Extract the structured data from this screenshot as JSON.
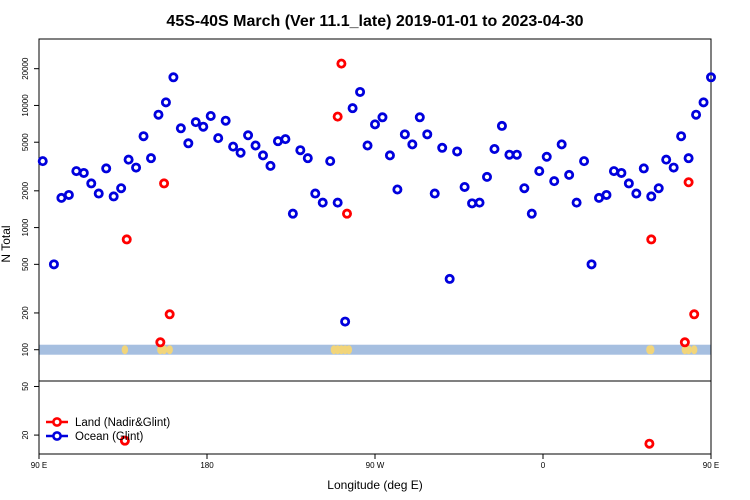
{
  "chart_data": {
    "type": "scatter",
    "title": "45S-40S March (Ver 11.1_late)   2019-01-01 to 2023-04-30",
    "xlabel": "Longitude (deg E)",
    "ylabel": "N Total",
    "x_scale": "longitude_unwrapped",
    "y_scale": "log",
    "xlim": [
      90,
      450
    ],
    "ylim": [
      14,
      35000
    ],
    "x_ticks": [
      {
        "value": 90,
        "label": "90 E"
      },
      {
        "value": 180,
        "label": "180"
      },
      {
        "value": 270,
        "label": "90 W"
      },
      {
        "value": 360,
        "label": "0"
      },
      {
        "value": 450,
        "label": "90 E"
      },
      {
        "value": 540,
        "label": "180"
      }
    ],
    "y_ticks": [
      {
        "value": 20,
        "label": "20"
      },
      {
        "value": 50,
        "label": "50"
      },
      {
        "value": 100,
        "label": "100"
      },
      {
        "value": 200,
        "label": "200"
      },
      {
        "value": 500,
        "label": "500"
      },
      {
        "value": 1000,
        "label": "1000"
      },
      {
        "value": 2000,
        "label": "2000"
      },
      {
        "value": 5000,
        "label": "5000"
      },
      {
        "value": 10000,
        "label": "10000"
      },
      {
        "value": 20000,
        "label": "20000"
      }
    ],
    "legend": {
      "position": "bottom-left",
      "entries": [
        {
          "label": "Land (Nadir&Glint)",
          "color": "#ff0000"
        },
        {
          "label": "Ocean (Glint)",
          "color": "#0000dd"
        }
      ]
    },
    "series": [
      {
        "name": "Ocean (Glint)",
        "color": "#0000dd",
        "points": [
          [
            92,
            3500
          ],
          [
            98,
            500
          ],
          [
            102,
            1750
          ],
          [
            106,
            1850
          ],
          [
            110,
            2900
          ],
          [
            114,
            2800
          ],
          [
            118,
            2300
          ],
          [
            122,
            1900
          ],
          [
            126,
            3050
          ],
          [
            130,
            1800
          ],
          [
            134,
            2100
          ],
          [
            138,
            3600
          ],
          [
            142,
            3100
          ],
          [
            146,
            5600
          ],
          [
            150,
            3700
          ],
          [
            154,
            8400
          ],
          [
            158,
            10600
          ],
          [
            162,
            17000
          ],
          [
            166,
            6500
          ],
          [
            170,
            4900
          ],
          [
            174,
            7300
          ],
          [
            178,
            6700
          ],
          [
            182,
            8200
          ],
          [
            186,
            5400
          ],
          [
            190,
            7500
          ],
          [
            194,
            4600
          ],
          [
            198,
            4100
          ],
          [
            202,
            5700
          ],
          [
            206,
            4700
          ],
          [
            210,
            3900
          ],
          [
            214,
            3200
          ],
          [
            218,
            5100
          ],
          [
            222,
            5300
          ],
          [
            226,
            1300
          ],
          [
            230,
            4300
          ],
          [
            234,
            3700
          ],
          [
            238,
            1900
          ],
          [
            242,
            1600
          ],
          [
            246,
            3500
          ],
          [
            250,
            1600
          ],
          [
            254,
            170
          ],
          [
            258,
            9500
          ],
          [
            262,
            12900
          ],
          [
            266,
            4700
          ],
          [
            270,
            7000
          ],
          [
            274,
            8000
          ],
          [
            278,
            3900
          ],
          [
            282,
            2050
          ],
          [
            286,
            5800
          ],
          [
            290,
            4800
          ],
          [
            294,
            8000
          ],
          [
            298,
            5800
          ],
          [
            302,
            1900
          ],
          [
            306,
            4500
          ],
          [
            310,
            380
          ],
          [
            314,
            4200
          ],
          [
            318,
            2150
          ],
          [
            322,
            1580
          ],
          [
            326,
            1600
          ],
          [
            330,
            2600
          ],
          [
            334,
            4400
          ],
          [
            338,
            6800
          ],
          [
            342,
            3950
          ],
          [
            346,
            3950
          ],
          [
            350,
            2100
          ],
          [
            354,
            1300
          ],
          [
            358,
            2900
          ],
          [
            362,
            3800
          ],
          [
            366,
            2400
          ],
          [
            370,
            4800
          ],
          [
            374,
            2700
          ],
          [
            378,
            1600
          ],
          [
            382,
            3500
          ],
          [
            386,
            500
          ],
          [
            390,
            1750
          ],
          [
            394,
            1850
          ],
          [
            398,
            2900
          ],
          [
            402,
            2800
          ],
          [
            406,
            2300
          ],
          [
            410,
            1900
          ],
          [
            414,
            3050
          ],
          [
            418,
            1800
          ],
          [
            422,
            2100
          ],
          [
            426,
            3600
          ],
          [
            430,
            3100
          ],
          [
            434,
            5600
          ],
          [
            438,
            3700
          ],
          [
            442,
            8400
          ],
          [
            446,
            10600
          ],
          [
            450,
            17000
          ]
        ]
      },
      {
        "name": "Land (Nadir&Glint)",
        "color": "#ff0000",
        "points": [
          [
            136,
            18
          ],
          [
            137,
            800
          ],
          [
            155,
            115
          ],
          [
            157,
            2300
          ],
          [
            160,
            195
          ],
          [
            250,
            8100
          ],
          [
            252,
            22000
          ],
          [
            255,
            1300
          ],
          [
            417,
            17
          ],
          [
            418,
            800
          ],
          [
            436,
            115
          ],
          [
            438,
            2350
          ],
          [
            441,
            195
          ]
        ]
      }
    ],
    "reference_band": {
      "value": 100,
      "color": "#a6bfe0"
    },
    "land_flags": {
      "color": "#f2d57a",
      "x": [
        136,
        155,
        157,
        160,
        248,
        250,
        252,
        254,
        256,
        417,
        418,
        436,
        438,
        441
      ]
    },
    "grid": false
  }
}
